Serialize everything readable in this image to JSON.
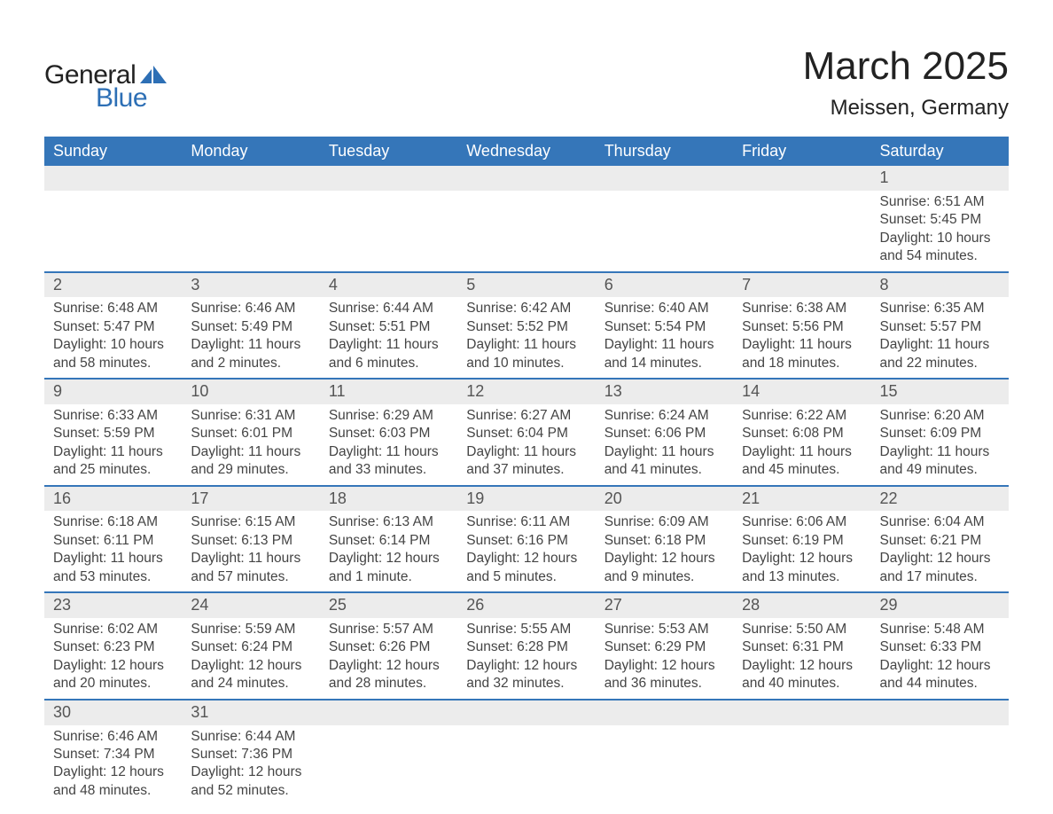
{
  "logo": {
    "general": "General",
    "blue": "Blue",
    "triangle_color": "#2d6fb5"
  },
  "title": "March 2025",
  "location": "Meissen, Germany",
  "colors": {
    "header_bg": "#3576b9",
    "header_fg": "#ffffff",
    "daynum_bg": "#ececec",
    "row_border": "#3576b9",
    "text": "#444444",
    "page_bg": "#ffffff"
  },
  "typography": {
    "title_fontsize": 44,
    "location_fontsize": 24,
    "dayheader_fontsize": 18,
    "daynum_fontsize": 18,
    "body_fontsize": 15.5
  },
  "labels": {
    "sunrise": "Sunrise:",
    "sunset": "Sunset:",
    "daylight": "Daylight:"
  },
  "day_headers": [
    "Sunday",
    "Monday",
    "Tuesday",
    "Wednesday",
    "Thursday",
    "Friday",
    "Saturday"
  ],
  "weeks": [
    [
      {
        "blank": true
      },
      {
        "blank": true
      },
      {
        "blank": true
      },
      {
        "blank": true
      },
      {
        "blank": true
      },
      {
        "blank": true
      },
      {
        "num": "1",
        "sunrise": "6:51 AM",
        "sunset": "5:45 PM",
        "daylight": "10 hours and 54 minutes."
      }
    ],
    [
      {
        "num": "2",
        "sunrise": "6:48 AM",
        "sunset": "5:47 PM",
        "daylight": "10 hours and 58 minutes."
      },
      {
        "num": "3",
        "sunrise": "6:46 AM",
        "sunset": "5:49 PM",
        "daylight": "11 hours and 2 minutes."
      },
      {
        "num": "4",
        "sunrise": "6:44 AM",
        "sunset": "5:51 PM",
        "daylight": "11 hours and 6 minutes."
      },
      {
        "num": "5",
        "sunrise": "6:42 AM",
        "sunset": "5:52 PM",
        "daylight": "11 hours and 10 minutes."
      },
      {
        "num": "6",
        "sunrise": "6:40 AM",
        "sunset": "5:54 PM",
        "daylight": "11 hours and 14 minutes."
      },
      {
        "num": "7",
        "sunrise": "6:38 AM",
        "sunset": "5:56 PM",
        "daylight": "11 hours and 18 minutes."
      },
      {
        "num": "8",
        "sunrise": "6:35 AM",
        "sunset": "5:57 PM",
        "daylight": "11 hours and 22 minutes."
      }
    ],
    [
      {
        "num": "9",
        "sunrise": "6:33 AM",
        "sunset": "5:59 PM",
        "daylight": "11 hours and 25 minutes."
      },
      {
        "num": "10",
        "sunrise": "6:31 AM",
        "sunset": "6:01 PM",
        "daylight": "11 hours and 29 minutes."
      },
      {
        "num": "11",
        "sunrise": "6:29 AM",
        "sunset": "6:03 PM",
        "daylight": "11 hours and 33 minutes."
      },
      {
        "num": "12",
        "sunrise": "6:27 AM",
        "sunset": "6:04 PM",
        "daylight": "11 hours and 37 minutes."
      },
      {
        "num": "13",
        "sunrise": "6:24 AM",
        "sunset": "6:06 PM",
        "daylight": "11 hours and 41 minutes."
      },
      {
        "num": "14",
        "sunrise": "6:22 AM",
        "sunset": "6:08 PM",
        "daylight": "11 hours and 45 minutes."
      },
      {
        "num": "15",
        "sunrise": "6:20 AM",
        "sunset": "6:09 PM",
        "daylight": "11 hours and 49 minutes."
      }
    ],
    [
      {
        "num": "16",
        "sunrise": "6:18 AM",
        "sunset": "6:11 PM",
        "daylight": "11 hours and 53 minutes."
      },
      {
        "num": "17",
        "sunrise": "6:15 AM",
        "sunset": "6:13 PM",
        "daylight": "11 hours and 57 minutes."
      },
      {
        "num": "18",
        "sunrise": "6:13 AM",
        "sunset": "6:14 PM",
        "daylight": "12 hours and 1 minute."
      },
      {
        "num": "19",
        "sunrise": "6:11 AM",
        "sunset": "6:16 PM",
        "daylight": "12 hours and 5 minutes."
      },
      {
        "num": "20",
        "sunrise": "6:09 AM",
        "sunset": "6:18 PM",
        "daylight": "12 hours and 9 minutes."
      },
      {
        "num": "21",
        "sunrise": "6:06 AM",
        "sunset": "6:19 PM",
        "daylight": "12 hours and 13 minutes."
      },
      {
        "num": "22",
        "sunrise": "6:04 AM",
        "sunset": "6:21 PM",
        "daylight": "12 hours and 17 minutes."
      }
    ],
    [
      {
        "num": "23",
        "sunrise": "6:02 AM",
        "sunset": "6:23 PM",
        "daylight": "12 hours and 20 minutes."
      },
      {
        "num": "24",
        "sunrise": "5:59 AM",
        "sunset": "6:24 PM",
        "daylight": "12 hours and 24 minutes."
      },
      {
        "num": "25",
        "sunrise": "5:57 AM",
        "sunset": "6:26 PM",
        "daylight": "12 hours and 28 minutes."
      },
      {
        "num": "26",
        "sunrise": "5:55 AM",
        "sunset": "6:28 PM",
        "daylight": "12 hours and 32 minutes."
      },
      {
        "num": "27",
        "sunrise": "5:53 AM",
        "sunset": "6:29 PM",
        "daylight": "12 hours and 36 minutes."
      },
      {
        "num": "28",
        "sunrise": "5:50 AM",
        "sunset": "6:31 PM",
        "daylight": "12 hours and 40 minutes."
      },
      {
        "num": "29",
        "sunrise": "5:48 AM",
        "sunset": "6:33 PM",
        "daylight": "12 hours and 44 minutes."
      }
    ],
    [
      {
        "num": "30",
        "sunrise": "6:46 AM",
        "sunset": "7:34 PM",
        "daylight": "12 hours and 48 minutes."
      },
      {
        "num": "31",
        "sunrise": "6:44 AM",
        "sunset": "7:36 PM",
        "daylight": "12 hours and 52 minutes."
      },
      {
        "blank": true
      },
      {
        "blank": true
      },
      {
        "blank": true
      },
      {
        "blank": true
      },
      {
        "blank": true
      }
    ]
  ]
}
